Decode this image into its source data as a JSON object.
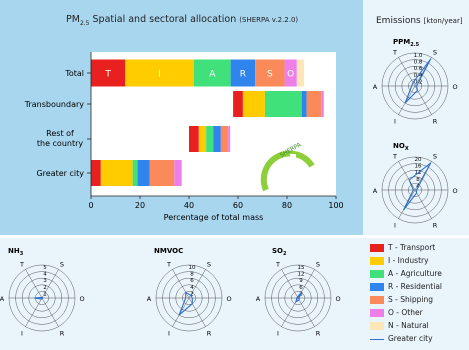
{
  "title": {
    "main": "PM",
    "sub": "2.5",
    "rest": " Spatial and sectoral allocation",
    "version": "(SHERPA v.2.2.0)"
  },
  "emissions": {
    "title": "Emissions",
    "unit": "[kton/year]"
  },
  "colors": {
    "T": "#e8201f",
    "I": "#ffcc00",
    "A": "#40e07a",
    "R": "#2f84ee",
    "S": "#fb8a5b",
    "O": "#ef7fe8",
    "N": "#fde7b8",
    "greater_city": "#2f6fcf"
  },
  "logo_text": "SHERPA",
  "chart_data": [
    {
      "type": "bar",
      "orientation": "horizontal",
      "stacked": true,
      "xlabel": "Percentage of total mass",
      "xlim": [
        0,
        100
      ],
      "xticks": [
        0,
        20,
        40,
        60,
        80,
        100
      ],
      "categories": [
        "Total",
        "Transboundary",
        "Rest of the country",
        "Greater city"
      ],
      "bars": [
        {
          "category": "Total",
          "segments": [
            {
              "key": "T",
              "start": 0,
              "value": 14,
              "label": "T"
            },
            {
              "key": "I",
              "start": 14,
              "value": 28,
              "label": "I"
            },
            {
              "key": "A",
              "start": 42,
              "value": 15,
              "label": "A"
            },
            {
              "key": "R",
              "start": 57,
              "value": 10,
              "label": "R"
            },
            {
              "key": "S",
              "start": 67,
              "value": 12,
              "label": "S"
            },
            {
              "key": "O",
              "start": 79,
              "value": 5,
              "label": "O"
            },
            {
              "key": "N",
              "start": 84,
              "value": 3,
              "label": ""
            }
          ]
        },
        {
          "category": "Transboundary",
          "segments": [
            {
              "key": "T",
              "start": 58,
              "value": 4
            },
            {
              "key": "I",
              "start": 62,
              "value": 9
            },
            {
              "key": "A",
              "start": 71,
              "value": 15
            },
            {
              "key": "R",
              "start": 86,
              "value": 2
            },
            {
              "key": "S",
              "start": 88,
              "value": 6
            },
            {
              "key": "O",
              "start": 94,
              "value": 1
            }
          ]
        },
        {
          "category": "Rest of the country",
          "segments": [
            {
              "key": "T",
              "start": 40,
              "value": 4
            },
            {
              "key": "I",
              "start": 44,
              "value": 3
            },
            {
              "key": "A",
              "start": 47,
              "value": 3
            },
            {
              "key": "R",
              "start": 50,
              "value": 3
            },
            {
              "key": "S",
              "start": 53,
              "value": 3
            },
            {
              "key": "O",
              "start": 56,
              "value": 0.8
            }
          ]
        },
        {
          "category": "Greater city",
          "segments": [
            {
              "key": "T",
              "start": 0,
              "value": 4
            },
            {
              "key": "I",
              "start": 4,
              "value": 13
            },
            {
              "key": "A",
              "start": 17,
              "value": 2
            },
            {
              "key": "R",
              "start": 19,
              "value": 5
            },
            {
              "key": "S",
              "start": 24,
              "value": 10
            },
            {
              "key": "O",
              "start": 34,
              "value": 3
            }
          ]
        }
      ]
    },
    {
      "type": "radar",
      "pollutant": "PPM",
      "pollutant_sub": "2.5",
      "axes": [
        "T",
        "S",
        "O",
        "R",
        "I",
        "A"
      ],
      "ticks": [
        "1.0",
        "0.8",
        "0.6",
        "0.4",
        "0.2"
      ],
      "rmax": 1.0,
      "series": [
        {
          "name": "Greater city",
          "values": [
            0.12,
            0.95,
            0.05,
            0.15,
            0.6,
            0.1
          ]
        }
      ]
    },
    {
      "type": "radar",
      "pollutant": "NO",
      "pollutant_sub": "X",
      "axes": [
        "T",
        "S",
        "O",
        "R",
        "I",
        "A"
      ],
      "ticks": [
        "20",
        "16",
        "12",
        "8",
        "4"
      ],
      "rmax": 20,
      "series": [
        {
          "name": "Greater city",
          "values": [
            7,
            19,
            1,
            2,
            14,
            1
          ]
        }
      ]
    },
    {
      "type": "radar",
      "pollutant": "NH",
      "pollutant_sub": "3",
      "axes": [
        "T",
        "S",
        "O",
        "R",
        "I",
        "A"
      ],
      "ticks": [
        "5",
        "4",
        "3",
        "2",
        "1"
      ],
      "rmax": 5,
      "series": [
        {
          "name": "Greater city",
          "values": [
            0.1,
            0.1,
            0.1,
            0.1,
            0.2,
            1.2
          ]
        }
      ]
    },
    {
      "type": "radar",
      "pollutant": "NMVOC",
      "pollutant_sub": "",
      "axes": [
        "T",
        "S",
        "O",
        "R",
        "I",
        "A"
      ],
      "ticks": [
        "10",
        "8",
        "6",
        "4",
        "2"
      ],
      "rmax": 10,
      "series": [
        {
          "name": "Greater city",
          "values": [
            2,
            1,
            1,
            2,
            6,
            1
          ]
        }
      ]
    },
    {
      "type": "radar",
      "pollutant": "SO",
      "pollutant_sub": "2",
      "axes": [
        "T",
        "S",
        "O",
        "R",
        "I",
        "A"
      ],
      "ticks": [
        "15",
        "12",
        "9",
        "6",
        "3"
      ],
      "rmax": 15,
      "series": [
        {
          "name": "Greater city",
          "values": [
            0.5,
            3,
            0.5,
            1,
            2,
            0.5
          ]
        }
      ]
    }
  ],
  "legend": [
    {
      "key": "T",
      "label": "T - Transport"
    },
    {
      "key": "I",
      "label": "I - Industry"
    },
    {
      "key": "A",
      "label": "A - Agriculture"
    },
    {
      "key": "R",
      "label": "R - Residential"
    },
    {
      "key": "S",
      "label": "S - Shipping"
    },
    {
      "key": "O",
      "label": "O - Other"
    },
    {
      "key": "N",
      "label": "N - Natural"
    },
    {
      "key": "line",
      "label": "Greater city"
    }
  ]
}
